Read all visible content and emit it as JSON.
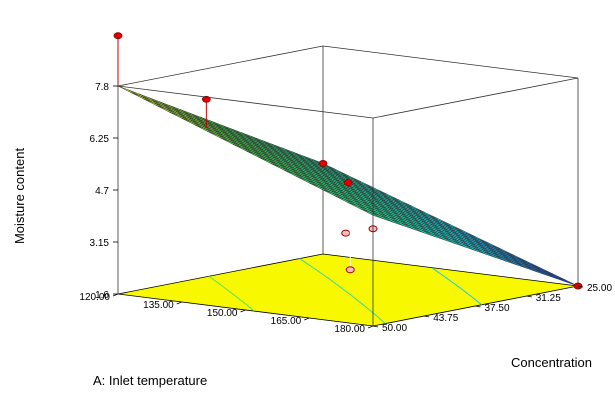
{
  "chart_data": {
    "type": "surface3d",
    "zlabel": "Moisture content",
    "xlabel": "A:  Inlet temperature",
    "ylabel": "Concentration",
    "x_ticks": [
      "120.00",
      "135.00",
      "150.00",
      "165.00",
      "180.00"
    ],
    "y_ticks": [
      "25.00",
      "31.25",
      "37.50",
      "43.75",
      "50.00"
    ],
    "z_ticks": [
      "1.6",
      "3.15",
      "4.7",
      "6.25",
      "7.8"
    ],
    "xlim": [
      120,
      180
    ],
    "ylim": [
      25,
      50
    ],
    "zlim": [
      1.6,
      7.8
    ],
    "surface": {
      "corners": [
        {
          "x": 120,
          "y": 25,
          "z": 7.8
        },
        {
          "x": 120,
          "y": 50,
          "z": 4.3
        },
        {
          "x": 180,
          "y": 50,
          "z": 1.6
        },
        {
          "x": 180,
          "y": 25,
          "z": 4.9
        }
      ],
      "grid_divisions": 20,
      "colormap": [
        "#1030d8",
        "#10d8f0",
        "#18e090",
        "#40d040",
        "#e8f018"
      ]
    },
    "design_points": [
      {
        "x": 120,
        "y": 25,
        "z": 9.3
      },
      {
        "x": 120,
        "y": 50,
        "z": 4.3
      },
      {
        "x": 180,
        "y": 50,
        "z": 1.6
      },
      {
        "x": 180,
        "y": 25,
        "z": 4.5
      },
      {
        "x": 150,
        "y": 37.5,
        "z": 4.8
      },
      {
        "x": 150,
        "y": 37.5,
        "z": 4.5
      },
      {
        "x": 135,
        "y": 45,
        "z": 2.7
      },
      {
        "x": 135,
        "y": 28,
        "z": 7.5
      },
      {
        "x": 165,
        "y": 30,
        "z": 2.8
      }
    ],
    "floor_color": "#f8f800",
    "contour_colors": [
      "#20c8f0",
      "#40d8a0",
      "#60e060"
    ],
    "point_color": "#e00000",
    "grid": false
  }
}
